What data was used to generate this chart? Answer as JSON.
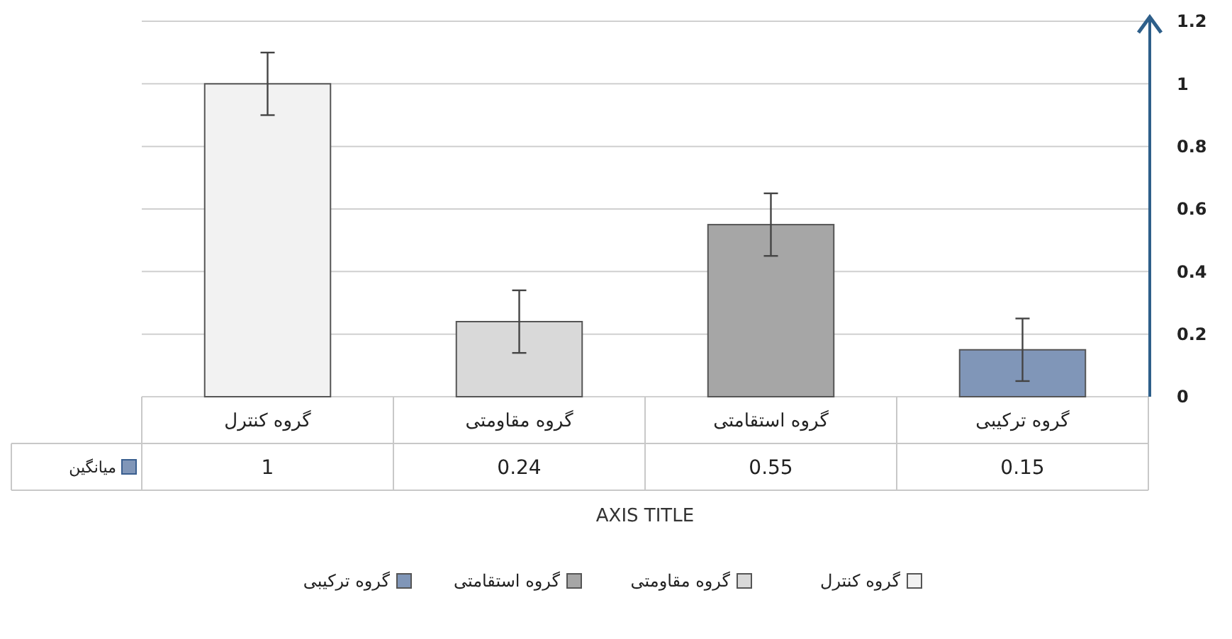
{
  "chart_data": {
    "type": "bar",
    "xlabel": "AXIS TITLE",
    "categories": [
      "گروه کنترل",
      "گروه مقاومتی",
      "گروه استقامتی",
      "گروه ترکیبی"
    ],
    "series": [
      {
        "name": "میانگین",
        "color": "#8096b8",
        "colors": [
          "#f2f2f2",
          "#d9d9d9",
          "#a6a6a6",
          "#8096b8"
        ],
        "values": [
          1,
          0.24,
          0.55,
          0.15
        ],
        "errors": [
          0.1,
          0.1,
          0.1,
          0.1
        ]
      }
    ],
    "ylim": [
      0,
      1.2
    ],
    "yticks": [
      0,
      0.2,
      0.4,
      0.6,
      0.8,
      1,
      1.2
    ],
    "grid": "y",
    "legend": "bottom",
    "data_labels": true
  }
}
